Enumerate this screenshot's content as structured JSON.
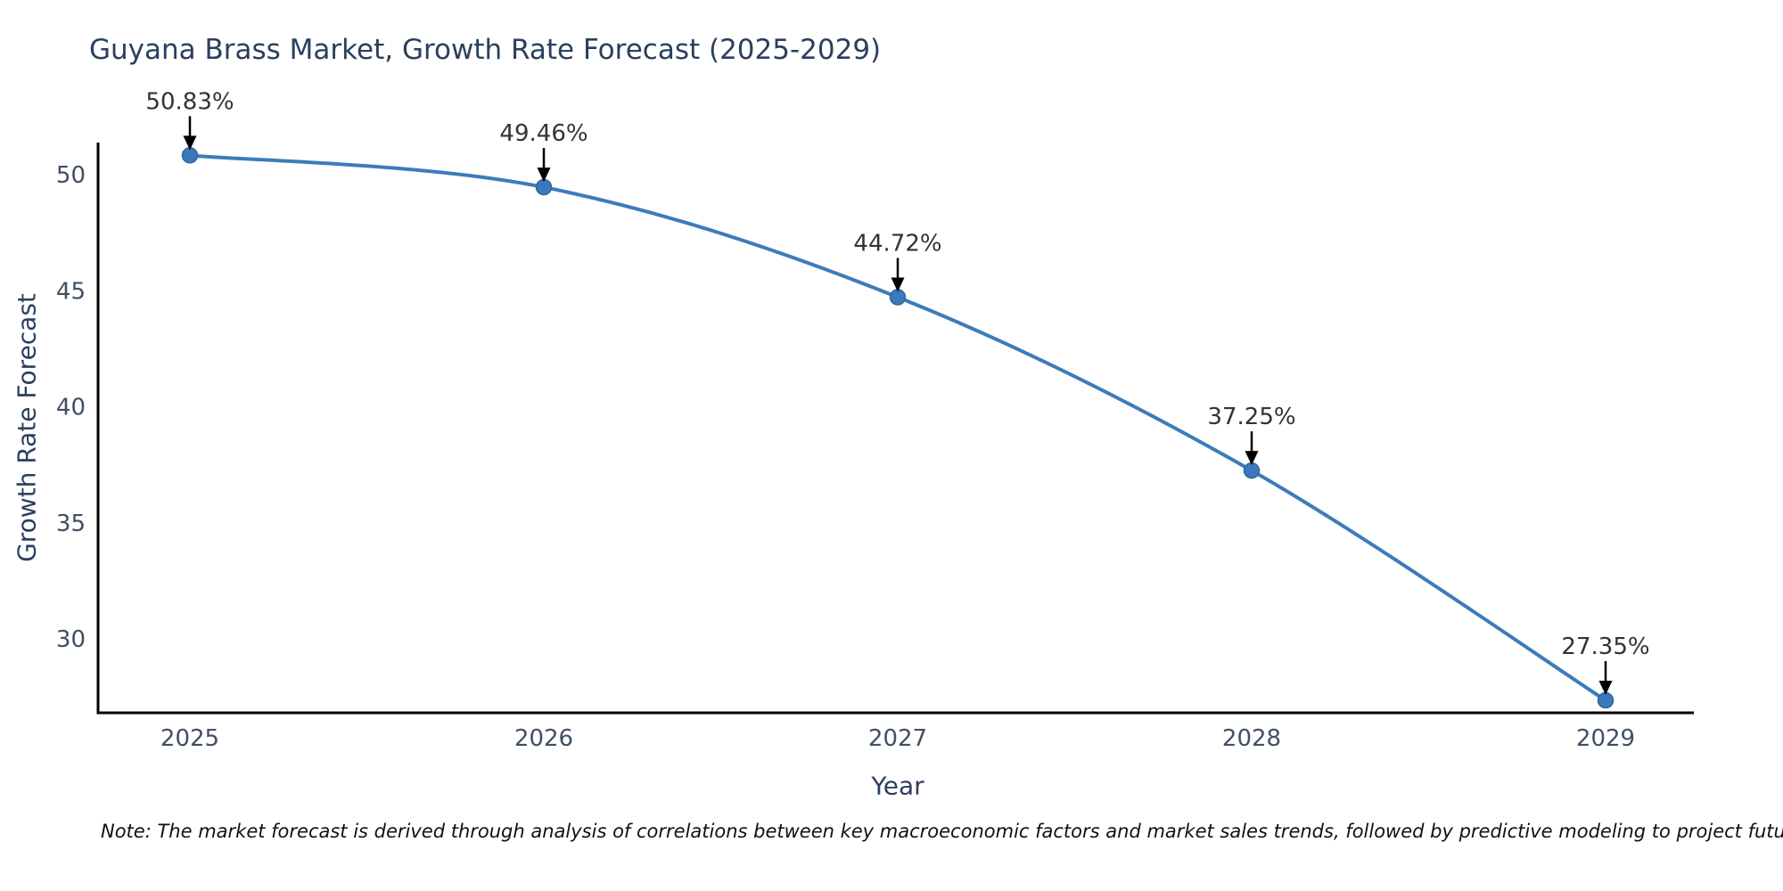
{
  "chart": {
    "title": "Guyana Brass Market, Growth Rate Forecast (2025-2029)",
    "note": "Note: The market forecast is derived through analysis of correlations between key macroeconomic factors and market sales trends, followed by predictive modeling to project future sales."
  },
  "chart_data": {
    "type": "line",
    "title": "Guyana Brass Market, Growth Rate Forecast (2025-2029)",
    "xlabel": "Year",
    "ylabel": "Growth Rate Forecast",
    "x": [
      "2025",
      "2026",
      "2027",
      "2028",
      "2029"
    ],
    "values": [
      50.83,
      49.46,
      44.72,
      37.25,
      27.35
    ],
    "point_labels": [
      "50.83%",
      "49.46%",
      "44.72%",
      "37.25%",
      "27.35%"
    ],
    "yticks": [
      50,
      45,
      40,
      35,
      30
    ],
    "ylim": [
      26.8,
      51.4
    ],
    "grid": false,
    "legend": "none",
    "line_smooth": true,
    "colors": {
      "line": "#3c7cb9",
      "marker": "#3a79bb",
      "marker_edge": "#2e689f",
      "axis_spine": "#000000",
      "tick_label": "#414f63",
      "title": "#2a3f5f",
      "axis_label": "#2a3f5f",
      "annotation_text": "#333333",
      "annotation_arrow": "#000000",
      "background": "#ffffff"
    }
  }
}
